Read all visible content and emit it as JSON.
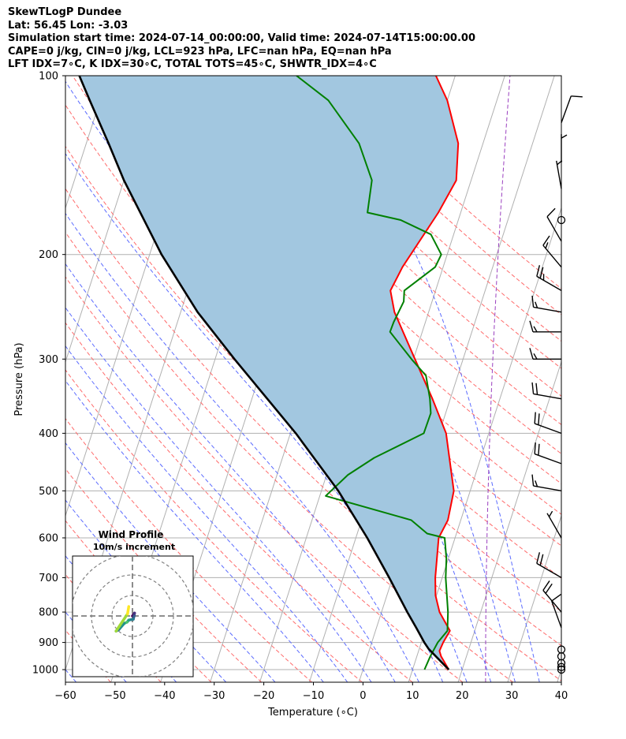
{
  "header": {
    "line1": "SkewTLogP Dundee",
    "line2": "Lat: 56.45   Lon: -3.03",
    "line3": "Simulation start time: 2024-07-14_00:00:00, Valid time: 2024-07-14T15:00:00.00",
    "line4": "CAPE=0 j/kg, CIN=0 j/kg, LCL=923 hPa, LFC=nan hPa, EQ=nan hPa",
    "line5": "LFT IDX=7∘C, K IDX=30∘C, TOTAL TOTS=45∘C, SHWTR_IDX=4∘C"
  },
  "colors": {
    "temperature": "#ff0000",
    "dewpoint": "#008000",
    "parcel": "#000000",
    "fill": "#a2c7e0",
    "dry_adiabat": "#ff6b6b",
    "moist_adiabat": "#5b6bff",
    "mixing_ratio": "#9a3fbf",
    "isotherm": "#b0b0b0"
  },
  "chart_data": {
    "type": "skew-t",
    "xlabel": "Temperature (∘C)",
    "ylabel": "Pressure (hPa)",
    "xlim": [
      -60,
      40
    ],
    "ylim": [
      1050,
      100
    ],
    "x_ticks": [
      -60,
      -50,
      -40,
      -30,
      -20,
      -10,
      0,
      10,
      20,
      30,
      40
    ],
    "x_tick_labels": [
      "−60",
      "−50",
      "−40",
      "−30",
      "−20",
      "−10",
      "0",
      "10",
      "20",
      "30",
      "40"
    ],
    "y_ticks": [
      1000,
      900,
      800,
      700,
      600,
      500,
      400,
      300,
      200,
      100
    ],
    "y_tick_labels": [
      "1000",
      "900",
      "800",
      "700",
      "600",
      "500",
      "400",
      "300",
      "200",
      "100"
    ],
    "skew_deg_per_log_decade": 38.6,
    "temperature": {
      "p": [
        1000,
        950,
        930,
        900,
        860,
        800,
        750,
        700,
        600,
        560,
        500,
        400,
        350,
        300,
        250,
        230,
        210,
        170,
        150,
        130,
        110,
        100
      ],
      "t": [
        17.3,
        14.9,
        14.2,
        14.4,
        15.0,
        11.7,
        9.8,
        8.6,
        6.7,
        7.4,
        6.7,
        1.4,
        -3.6,
        -9.7,
        -16.9,
        -19.1,
        -18.2,
        -14.5,
        -13.0,
        -15.0,
        -20.0,
        -23.9
      ]
    },
    "dewpoint": {
      "p": [
        1000,
        950,
        900,
        860,
        800,
        700,
        650,
        600,
        590,
        560,
        510,
        470,
        440,
        400,
        370,
        350,
        320,
        300,
        270,
        260,
        240,
        230,
        210,
        200,
        185,
        175,
        170,
        150,
        130,
        110,
        100
      ],
      "dewpoint_c": [
        12.4,
        12.7,
        13.3,
        14.5,
        13.4,
        10.7,
        9.6,
        7.9,
        4.1,
        0.0,
        -18.8,
        -15.7,
        -11.5,
        -3.1,
        -3.0,
        -4.1,
        -6.4,
        -10.4,
        -16.5,
        -16.4,
        -15.7,
        -16.3,
        -11.6,
        -11.2,
        -14.6,
        -21.6,
        -28.8,
        -30.0,
        -35.0,
        -44.0,
        -52.0
      ]
    },
    "parcel": {
      "p": [
        1000,
        923,
        900,
        850,
        800,
        700,
        600,
        500,
        400,
        300,
        250,
        200,
        150,
        130,
        110,
        100
      ],
      "t": [
        17.3,
        11.9,
        10.6,
        8.0,
        5.2,
        -0.7,
        -7.7,
        -16.6,
        -28.9,
        -46.1,
        -56.6,
        -67.6,
        -80.0,
        -85.5,
        -92.1,
        -95.8
      ]
    },
    "cape_cin_fill": "shaded region between parcel and temperature profiles",
    "dry_adiabats_theta_k": [
      200,
      210,
      220,
      230,
      240,
      250,
      260,
      270,
      280,
      290,
      300,
      310,
      320,
      330,
      340,
      350,
      360,
      370,
      380,
      390,
      400,
      410,
      420,
      430,
      440
    ],
    "moist_adiabats_c": [
      -60,
      -50,
      -40,
      -30,
      -20,
      -10,
      -5,
      0,
      5,
      10,
      15,
      20,
      25,
      30,
      35
    ],
    "mixing_ratio_lines": [
      0.02,
      0.1
    ],
    "wind_barbs": [
      {
        "p": 1000,
        "calm": true
      },
      {
        "p": 990,
        "calm": true
      },
      {
        "p": 975,
        "calm": true
      },
      {
        "p": 950,
        "calm": true
      },
      {
        "p": 925,
        "calm": true
      },
      {
        "p": 850,
        "speed_kt": 10,
        "dir": 340
      },
      {
        "p": 800,
        "speed_kt": 20,
        "dir": 320
      },
      {
        "p": 700,
        "speed_kt": 20,
        "dir": 300
      },
      {
        "p": 600,
        "speed_kt": 5,
        "dir": 330
      },
      {
        "p": 500,
        "speed_kt": 15,
        "dir": 280
      },
      {
        "p": 450,
        "speed_kt": 20,
        "dir": 290
      },
      {
        "p": 400,
        "speed_kt": 20,
        "dir": 290
      },
      {
        "p": 350,
        "speed_kt": 20,
        "dir": 280
      },
      {
        "p": 300,
        "speed_kt": 15,
        "dir": 270
      },
      {
        "p": 270,
        "speed_kt": 15,
        "dir": 270
      },
      {
        "p": 250,
        "speed_kt": 15,
        "dir": 280
      },
      {
        "p": 230,
        "speed_kt": 25,
        "dir": 300
      },
      {
        "p": 210,
        "speed_kt": 15,
        "dir": 320
      },
      {
        "p": 190,
        "speed_kt": 10,
        "dir": 330
      },
      {
        "p": 175,
        "calm": true
      },
      {
        "p": 155,
        "speed_kt": 5,
        "dir": 350
      },
      {
        "p": 140,
        "speed_kt": 5,
        "dir": 0
      },
      {
        "p": 120,
        "speed_kt": 10,
        "dir": 20
      }
    ],
    "inset": {
      "title_line1": "Wind Profile",
      "title_line2": "10m/s increment",
      "rings_ms": [
        10,
        20,
        30
      ],
      "hodograph": [
        {
          "u": 0.0,
          "v": 0.0,
          "color": "#440154"
        },
        {
          "u": 1.0,
          "v": 1.4,
          "color": "#440154"
        },
        {
          "u": 0.8,
          "v": 0.0,
          "color": "#46327e"
        },
        {
          "u": 0.4,
          "v": -1.6,
          "color": "#365c8d"
        },
        {
          "u": -1.8,
          "v": -2.0,
          "color": "#277f8e"
        },
        {
          "u": -2.6,
          "v": -3.0,
          "color": "#1fa187"
        },
        {
          "u": -4.0,
          "v": -3.6,
          "color": "#4ac16d"
        },
        {
          "u": -6.6,
          "v": -6.6,
          "color": "#21918c"
        },
        {
          "u": -8.0,
          "v": -7.4,
          "color": "#2a788e"
        },
        {
          "u": -2.4,
          "v": 1.0,
          "color": "#a0da39"
        },
        {
          "u": -1.8,
          "v": 4.6,
          "color": "#fde725"
        }
      ]
    }
  }
}
